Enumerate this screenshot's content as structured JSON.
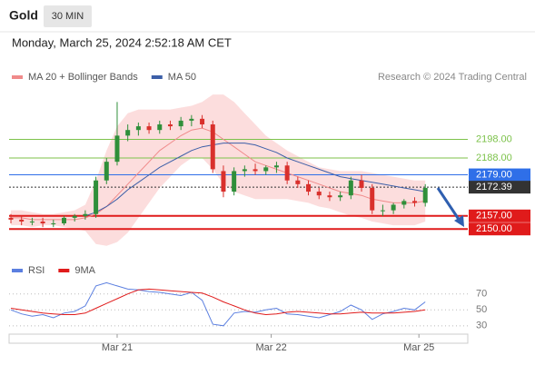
{
  "header": {
    "symbol": "Gold",
    "interval": "30 MIN",
    "datetime": "Monday, March 25, 2024 2:52:18 AM CET",
    "source": "Research © 2024 Trading Central"
  },
  "chart_data": [
    {
      "type": "candlestick",
      "up_color": "#2f8f3a",
      "down_color": "#d9302c",
      "xlim": [
        0,
        43
      ],
      "ylim": [
        2136,
        2224
      ],
      "xticks": [
        {
          "value": 10,
          "label": "Mar 21"
        },
        {
          "value": 24.5,
          "label": "Mar 22"
        },
        {
          "value": 38.4,
          "label": "Mar 25"
        }
      ],
      "open": [
        2156,
        2155,
        2154,
        2154,
        2153,
        2153,
        2156,
        2157,
        2158,
        2176,
        2186,
        2200,
        2203,
        2205,
        2203,
        2206,
        2205,
        2208,
        2209,
        2206,
        2181,
        2170,
        2181,
        2182,
        2181,
        2183,
        2184,
        2176,
        2174,
        2170,
        2168,
        2167,
        2168,
        2176,
        2172,
        2160,
        2160,
        2163,
        2165,
        2164
      ],
      "high": [
        2158,
        2157,
        2156,
        2156,
        2155,
        2157,
        2158,
        2160,
        2178,
        2188,
        2218,
        2206,
        2207,
        2207,
        2208,
        2208,
        2210,
        2211,
        2211,
        2208,
        2184,
        2183,
        2184,
        2185,
        2184,
        2186,
        2186,
        2178,
        2176,
        2172,
        2170,
        2170,
        2178,
        2179,
        2174,
        2163,
        2164,
        2166,
        2167,
        2174
      ],
      "low": [
        2153,
        2152,
        2152,
        2151,
        2151,
        2152,
        2154,
        2155,
        2156,
        2174,
        2184,
        2197,
        2200,
        2201,
        2201,
        2203,
        2203,
        2205,
        2204,
        2180,
        2167,
        2168,
        2178,
        2179,
        2179,
        2180,
        2174,
        2172,
        2168,
        2166,
        2165,
        2165,
        2166,
        2170,
        2158,
        2157,
        2158,
        2161,
        2162,
        2162
      ],
      "close": [
        2155,
        2154,
        2154,
        2153,
        2153,
        2156,
        2157,
        2158,
        2176,
        2186,
        2200,
        2203,
        2205,
        2203,
        2206,
        2205,
        2208,
        2209,
        2206,
        2182,
        2170,
        2181,
        2182,
        2181,
        2183,
        2184,
        2176,
        2174,
        2170,
        2168,
        2167,
        2168,
        2176,
        2172,
        2160,
        2160,
        2163,
        2165,
        2164,
        2172
      ],
      "bands": {
        "color": "#fbd5d5",
        "upper": [
          2160,
          2160,
          2159,
          2158,
          2158,
          2159,
          2160,
          2163,
          2176,
          2192,
          2205,
          2212,
          2214,
          2214,
          2214,
          2214,
          2215,
          2216,
          2218,
          2222,
          2222,
          2218,
          2212,
          2206,
          2200,
          2196,
          2192,
          2189,
          2186,
          2183,
          2182,
          2181,
          2181,
          2181,
          2180,
          2179,
          2178,
          2177,
          2176,
          2176
        ],
        "lower": [
          2152,
          2152,
          2151,
          2152,
          2152,
          2151,
          2150,
          2149,
          2142,
          2141,
          2143,
          2148,
          2156,
          2164,
          2172,
          2178,
          2184,
          2188,
          2188,
          2182,
          2174,
          2170,
          2168,
          2166,
          2166,
          2166,
          2166,
          2165,
          2164,
          2162,
          2161,
          2159,
          2157,
          2156,
          2154,
          2153,
          2152,
          2152,
          2152,
          2154
        ]
      },
      "series": [
        {
          "name": "MA 20 + Bollinger Bands",
          "color": "#f08a8a",
          "values": [
            2156,
            2156,
            2155,
            2155,
            2155,
            2155,
            2155,
            2156,
            2158,
            2162,
            2168,
            2174,
            2180,
            2186,
            2192,
            2196,
            2200,
            2203,
            2204,
            2202,
            2198,
            2194,
            2190,
            2186,
            2184,
            2182,
            2180,
            2178,
            2176,
            2174,
            2172,
            2170,
            2169,
            2168,
            2166,
            2165,
            2164,
            2164,
            2164,
            2165
          ]
        },
        {
          "name": "MA 50",
          "color": "#3d5fa8",
          "values": [
            null,
            null,
            null,
            null,
            null,
            null,
            null,
            2157,
            2159,
            2162,
            2166,
            2171,
            2175,
            2179,
            2183,
            2186,
            2189,
            2192,
            2194,
            2195,
            2196,
            2196,
            2196,
            2195,
            2193,
            2191,
            2188,
            2186,
            2184,
            2182,
            2180,
            2178,
            2177,
            2176,
            2175,
            2174,
            2173,
            2172,
            2171,
            2170
          ]
        }
      ],
      "levels": [
        {
          "value": 2198,
          "label": "2198.00",
          "color": "#7cc24a",
          "boxed": false,
          "dotted": false
        },
        {
          "value": 2188,
          "label": "2188.00",
          "color": "#7cc24a",
          "boxed": false,
          "dotted": false
        },
        {
          "value": 2179,
          "label": "2179.00",
          "color": "#2f6fe8",
          "boxed": true,
          "dotted": false
        },
        {
          "value": 2172.39,
          "label": "2172.39",
          "color": "#333333",
          "boxed": true,
          "dotted": true
        },
        {
          "value": 2157,
          "label": "2157.00",
          "color": "#e01b1b",
          "boxed": true,
          "dotted": false
        },
        {
          "value": 2150,
          "label": "2150.00",
          "color": "#e01b1b",
          "boxed": true,
          "dotted": false
        }
      ]
    },
    {
      "type": "line",
      "xlim": [
        0,
        43
      ],
      "ylim": [
        15,
        97
      ],
      "yticks": [
        30,
        50,
        70
      ],
      "series": [
        {
          "name": "RSI",
          "color": "#5b7fe0",
          "values": [
            50,
            45,
            42,
            44,
            40,
            46,
            48,
            55,
            80,
            84,
            80,
            76,
            75,
            73,
            72,
            70,
            68,
            72,
            62,
            32,
            30,
            46,
            48,
            47,
            50,
            52,
            45,
            44,
            42,
            40,
            44,
            48,
            56,
            50,
            38,
            45,
            48,
            52,
            50,
            60
          ]
        },
        {
          "name": "9MA",
          "color": "#e01b1b",
          "values": [
            52,
            50,
            48,
            46,
            45,
            44,
            44,
            46,
            52,
            58,
            64,
            70,
            75,
            76,
            75,
            74,
            73,
            72,
            71,
            66,
            60,
            55,
            50,
            46,
            44,
            45,
            47,
            48,
            47,
            46,
            45,
            45,
            46,
            47,
            46,
            46,
            46,
            47,
            48,
            50
          ]
        }
      ]
    }
  ]
}
